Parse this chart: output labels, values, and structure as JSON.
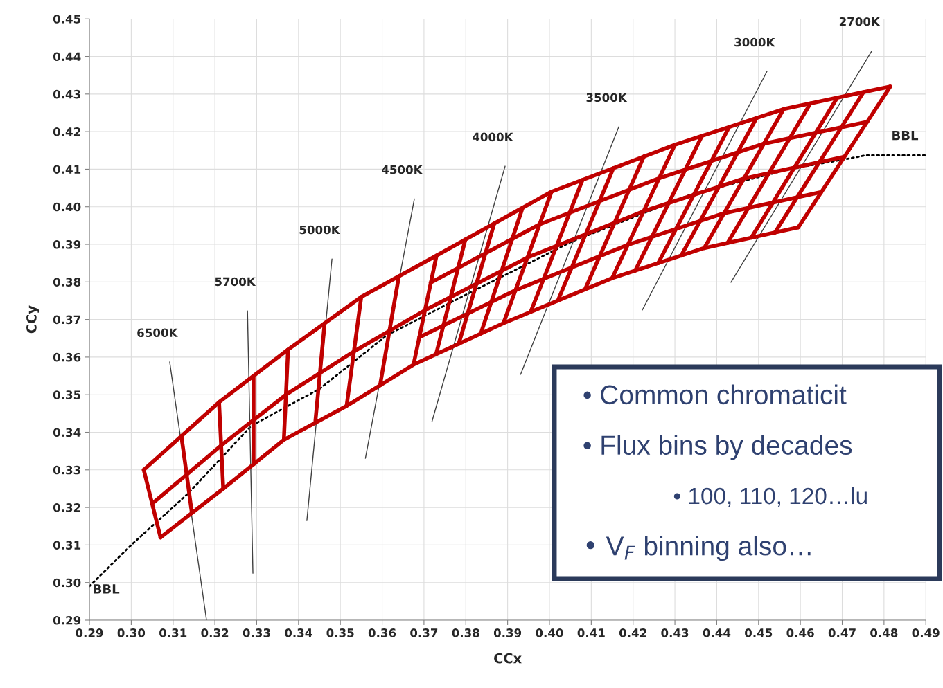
{
  "chart_data": {
    "type": "line",
    "xlabel": "CCx",
    "ylabel": "CCy",
    "xlim": [
      0.29,
      0.49
    ],
    "ylim": [
      0.29,
      0.45
    ],
    "grid": true,
    "legend": false,
    "xticks": [
      {
        "value": 0.29,
        "label": "0.29"
      },
      {
        "value": 0.3,
        "label": "0.30"
      },
      {
        "value": 0.31,
        "label": "0.31"
      },
      {
        "value": 0.32,
        "label": "0.32"
      },
      {
        "value": 0.33,
        "label": "0.33"
      },
      {
        "value": 0.34,
        "label": "0.34"
      },
      {
        "value": 0.35,
        "label": "0.35"
      },
      {
        "value": 0.36,
        "label": "0.36"
      },
      {
        "value": 0.37,
        "label": "0.37"
      },
      {
        "value": 0.38,
        "label": "0.38"
      },
      {
        "value": 0.39,
        "label": "0.39"
      },
      {
        "value": 0.4,
        "label": "0.40"
      },
      {
        "value": 0.41,
        "label": "0.41"
      },
      {
        "value": 0.42,
        "label": "0.42"
      },
      {
        "value": 0.43,
        "label": "0.43"
      },
      {
        "value": 0.44,
        "label": "0.44"
      },
      {
        "value": 0.45,
        "label": "0.45"
      },
      {
        "value": 0.46,
        "label": "0.46"
      },
      {
        "value": 0.47,
        "label": "0.47"
      },
      {
        "value": 0.48,
        "label": "0.48"
      },
      {
        "value": 0.49,
        "label": "0.49"
      }
    ],
    "yticks": [
      {
        "value": 0.29,
        "label": "0.29"
      },
      {
        "value": 0.3,
        "label": "0.30"
      },
      {
        "value": 0.31,
        "label": "0.31"
      },
      {
        "value": 0.32,
        "label": "0.32"
      },
      {
        "value": 0.33,
        "label": "0.33"
      },
      {
        "value": 0.34,
        "label": "0.34"
      },
      {
        "value": 0.35,
        "label": "0.35"
      },
      {
        "value": 0.36,
        "label": "0.36"
      },
      {
        "value": 0.37,
        "label": "0.37"
      },
      {
        "value": 0.38,
        "label": "0.38"
      },
      {
        "value": 0.39,
        "label": "0.39"
      },
      {
        "value": 0.4,
        "label": "0.40"
      },
      {
        "value": 0.41,
        "label": "0.41"
      },
      {
        "value": 0.42,
        "label": "0.42"
      },
      {
        "value": 0.43,
        "label": "0.43"
      },
      {
        "value": 0.44,
        "label": "0.44"
      },
      {
        "value": 0.45,
        "label": "0.45"
      }
    ],
    "series": [
      {
        "name": "BBL",
        "color": "#000000",
        "line_style": "dotted",
        "x": [
          0.29,
          0.3,
          0.3135,
          0.3287,
          0.3451,
          0.3611,
          0.3804,
          0.4053,
          0.4339,
          0.4578,
          0.47,
          0.4757,
          0.49
        ],
        "values": [
          0.299,
          0.31,
          0.3236,
          0.3417,
          0.3516,
          0.3658,
          0.3768,
          0.3907,
          0.4033,
          0.4101,
          0.4125,
          0.4137,
          0.4137
        ]
      },
      {
        "name": "6500K",
        "color": "#404040",
        "x": [
          0.3092,
          0.318
        ],
        "values": [
          0.3587,
          0.29
        ]
      },
      {
        "name": "5700K",
        "color": "#404040",
        "x": [
          0.3278,
          0.3291
        ],
        "values": [
          0.3723,
          0.3025
        ]
      },
      {
        "name": "5000K",
        "color": "#404040",
        "x": [
          0.348,
          0.342
        ],
        "values": [
          0.3861,
          0.3165
        ]
      },
      {
        "name": "4500K",
        "color": "#404040",
        "x": [
          0.3677,
          0.356
        ],
        "values": [
          0.4021,
          0.3331
        ]
      },
      {
        "name": "4000K",
        "color": "#404040",
        "x": [
          0.3894,
          0.3719
        ],
        "values": [
          0.4108,
          0.3428
        ]
      },
      {
        "name": "3500K",
        "color": "#404040",
        "x": [
          0.4166,
          0.3931
        ],
        "values": [
          0.4213,
          0.3554
        ]
      },
      {
        "name": "3000K",
        "color": "#404040",
        "x": [
          0.452,
          0.4222
        ],
        "values": [
          0.436,
          0.3725
        ]
      },
      {
        "name": "2700K",
        "color": "#404040",
        "x": [
          0.4771,
          0.4434
        ],
        "values": [
          0.4415,
          0.3799
        ]
      },
      {
        "color": "#c00000",
        "x": [
          0.303,
          0.321,
          0.3375,
          0.355,
          0.373,
          0.4005,
          0.43,
          0.456,
          0.4815
        ],
        "values": [
          0.33,
          0.348,
          0.362,
          0.376,
          0.387,
          0.404,
          0.4165,
          0.426,
          0.432
        ]
      },
      {
        "color": "#c00000",
        "x": [
          0.3716,
          0.3976,
          0.4263,
          0.4513,
          0.476
        ],
        "values": [
          0.3798,
          0.3953,
          0.4076,
          0.4168,
          0.4226
        ]
      },
      {
        "color": "#c00000",
        "x": [
          0.305,
          0.3215,
          0.337,
          0.35325,
          0.3703,
          0.3948,
          0.4225,
          0.4465,
          0.4705
        ],
        "values": [
          0.321,
          0.3365,
          0.35,
          0.3615,
          0.3725,
          0.3865,
          0.3988,
          0.4075,
          0.4133
        ]
      },
      {
        "color": "#c00000",
        "x": [
          0.3689,
          0.3919,
          0.4188,
          0.4418,
          0.465
        ],
        "values": [
          0.3653,
          0.3778,
          0.3899,
          0.3983,
          0.4039
        ]
      },
      {
        "color": "#c00000",
        "x": [
          0.307,
          0.322,
          0.3365,
          0.3515,
          0.3675,
          0.389,
          0.415,
          0.437,
          0.4595
        ],
        "values": [
          0.312,
          0.325,
          0.338,
          0.347,
          0.358,
          0.369,
          0.381,
          0.389,
          0.3945
        ]
      },
      {
        "color": "#c00000",
        "x": [
          0.303,
          0.307
        ],
        "values": [
          0.33,
          0.312
        ]
      },
      {
        "color": "#c00000",
        "x": [
          0.312,
          0.3145
        ],
        "values": [
          0.339,
          0.3185
        ]
      },
      {
        "color": "#c00000",
        "x": [
          0.321,
          0.322
        ],
        "values": [
          0.348,
          0.325
        ]
      },
      {
        "color": "#c00000",
        "x": [
          0.32925,
          0.32925
        ],
        "values": [
          0.355,
          0.3315
        ]
      },
      {
        "color": "#c00000",
        "x": [
          0.3375,
          0.3365
        ],
        "values": [
          0.362,
          0.338
        ]
      },
      {
        "color": "#c00000",
        "x": [
          0.34625,
          0.344
        ],
        "values": [
          0.369,
          0.3425
        ]
      },
      {
        "color": "#c00000",
        "x": [
          0.355,
          0.3515
        ],
        "values": [
          0.376,
          0.347
        ]
      },
      {
        "color": "#c00000",
        "x": [
          0.364,
          0.3595
        ],
        "values": [
          0.3815,
          0.3525
        ]
      },
      {
        "color": "#c00000",
        "x": [
          0.373,
          0.3675
        ],
        "values": [
          0.387,
          0.358
        ]
      },
      {
        "color": "#c00000",
        "x": [
          0.3799,
          0.3729
        ],
        "values": [
          0.3913,
          0.3608
        ]
      },
      {
        "color": "#c00000",
        "x": [
          0.3868,
          0.3783
        ],
        "values": [
          0.3955,
          0.3635
        ]
      },
      {
        "color": "#c00000",
        "x": [
          0.3936,
          0.3836
        ],
        "values": [
          0.3998,
          0.3663
        ]
      },
      {
        "color": "#c00000",
        "x": [
          0.4005,
          0.389
        ],
        "values": [
          0.404,
          0.369
        ]
      },
      {
        "color": "#c00000",
        "x": [
          0.4079,
          0.3955
        ],
        "values": [
          0.4071,
          0.372
        ]
      },
      {
        "color": "#c00000",
        "x": [
          0.4153,
          0.402
        ],
        "values": [
          0.4103,
          0.375
        ]
      },
      {
        "color": "#c00000",
        "x": [
          0.4226,
          0.4085
        ],
        "values": [
          0.4134,
          0.378
        ]
      },
      {
        "color": "#c00000",
        "x": [
          0.43,
          0.415
        ],
        "values": [
          0.4165,
          0.381
        ]
      },
      {
        "color": "#c00000",
        "x": [
          0.4365,
          0.4205
        ],
        "values": [
          0.4189,
          0.383
        ]
      },
      {
        "color": "#c00000",
        "x": [
          0.443,
          0.426
        ],
        "values": [
          0.4213,
          0.385
        ]
      },
      {
        "color": "#c00000",
        "x": [
          0.4495,
          0.4315
        ],
        "values": [
          0.4236,
          0.387
        ]
      },
      {
        "color": "#c00000",
        "x": [
          0.456,
          0.437
        ],
        "values": [
          0.426,
          0.389
        ]
      },
      {
        "color": "#c00000",
        "x": [
          0.4624,
          0.4426
        ],
        "values": [
          0.4275,
          0.3904
        ]
      },
      {
        "color": "#c00000",
        "x": [
          0.4688,
          0.4483
        ],
        "values": [
          0.429,
          0.3918
        ]
      },
      {
        "color": "#c00000",
        "x": [
          0.4751,
          0.4539
        ],
        "values": [
          0.4305,
          0.3931
        ]
      },
      {
        "color": "#c00000",
        "x": [
          0.4815,
          0.4595
        ],
        "values": [
          0.432,
          0.3945
        ]
      }
    ],
    "annotations": [
      "• Common chromaticit",
      "• Flux bins by decades",
      "    • 100, 110, 120…lu",
      "• V$_{F}$ binning also…"
    ]
  }
}
